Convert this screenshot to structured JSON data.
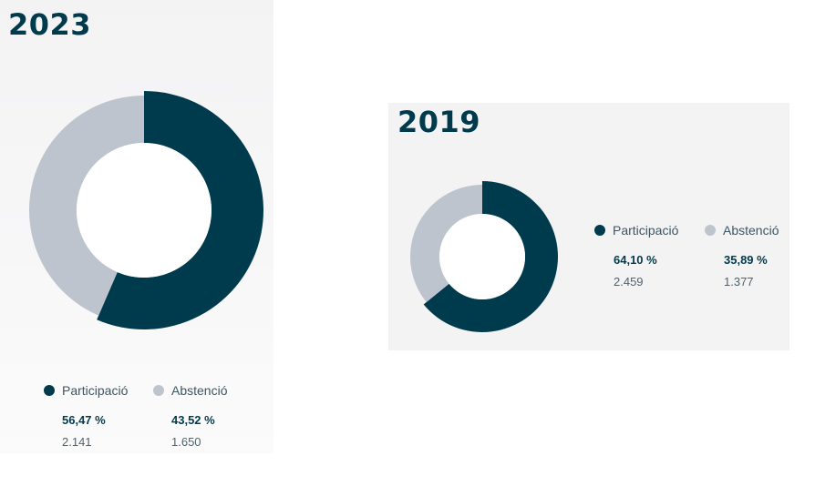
{
  "colors": {
    "participation": "#003b4d",
    "abstention": "#bec4ce",
    "hole": "#ffffff"
  },
  "chart_data": [
    {
      "type": "pie",
      "title": "2023",
      "legend_position": "bottom",
      "series": [
        {
          "name": "Participació",
          "percent": 56.47,
          "percent_label": "56,47 %",
          "count": 2141,
          "count_label": "2.141"
        },
        {
          "name": "Abstenció",
          "percent": 43.52,
          "percent_label": "43,52 %",
          "count": 1650,
          "count_label": "1.650"
        }
      ]
    },
    {
      "type": "pie",
      "title": "2019",
      "legend_position": "right",
      "series": [
        {
          "name": "Participació",
          "percent": 64.1,
          "percent_label": "64,10 %",
          "count": 2459,
          "count_label": "2.459"
        },
        {
          "name": "Abstenció",
          "percent": 35.89,
          "percent_label": "35,89 %",
          "count": 1377,
          "count_label": "1.377"
        }
      ]
    }
  ]
}
